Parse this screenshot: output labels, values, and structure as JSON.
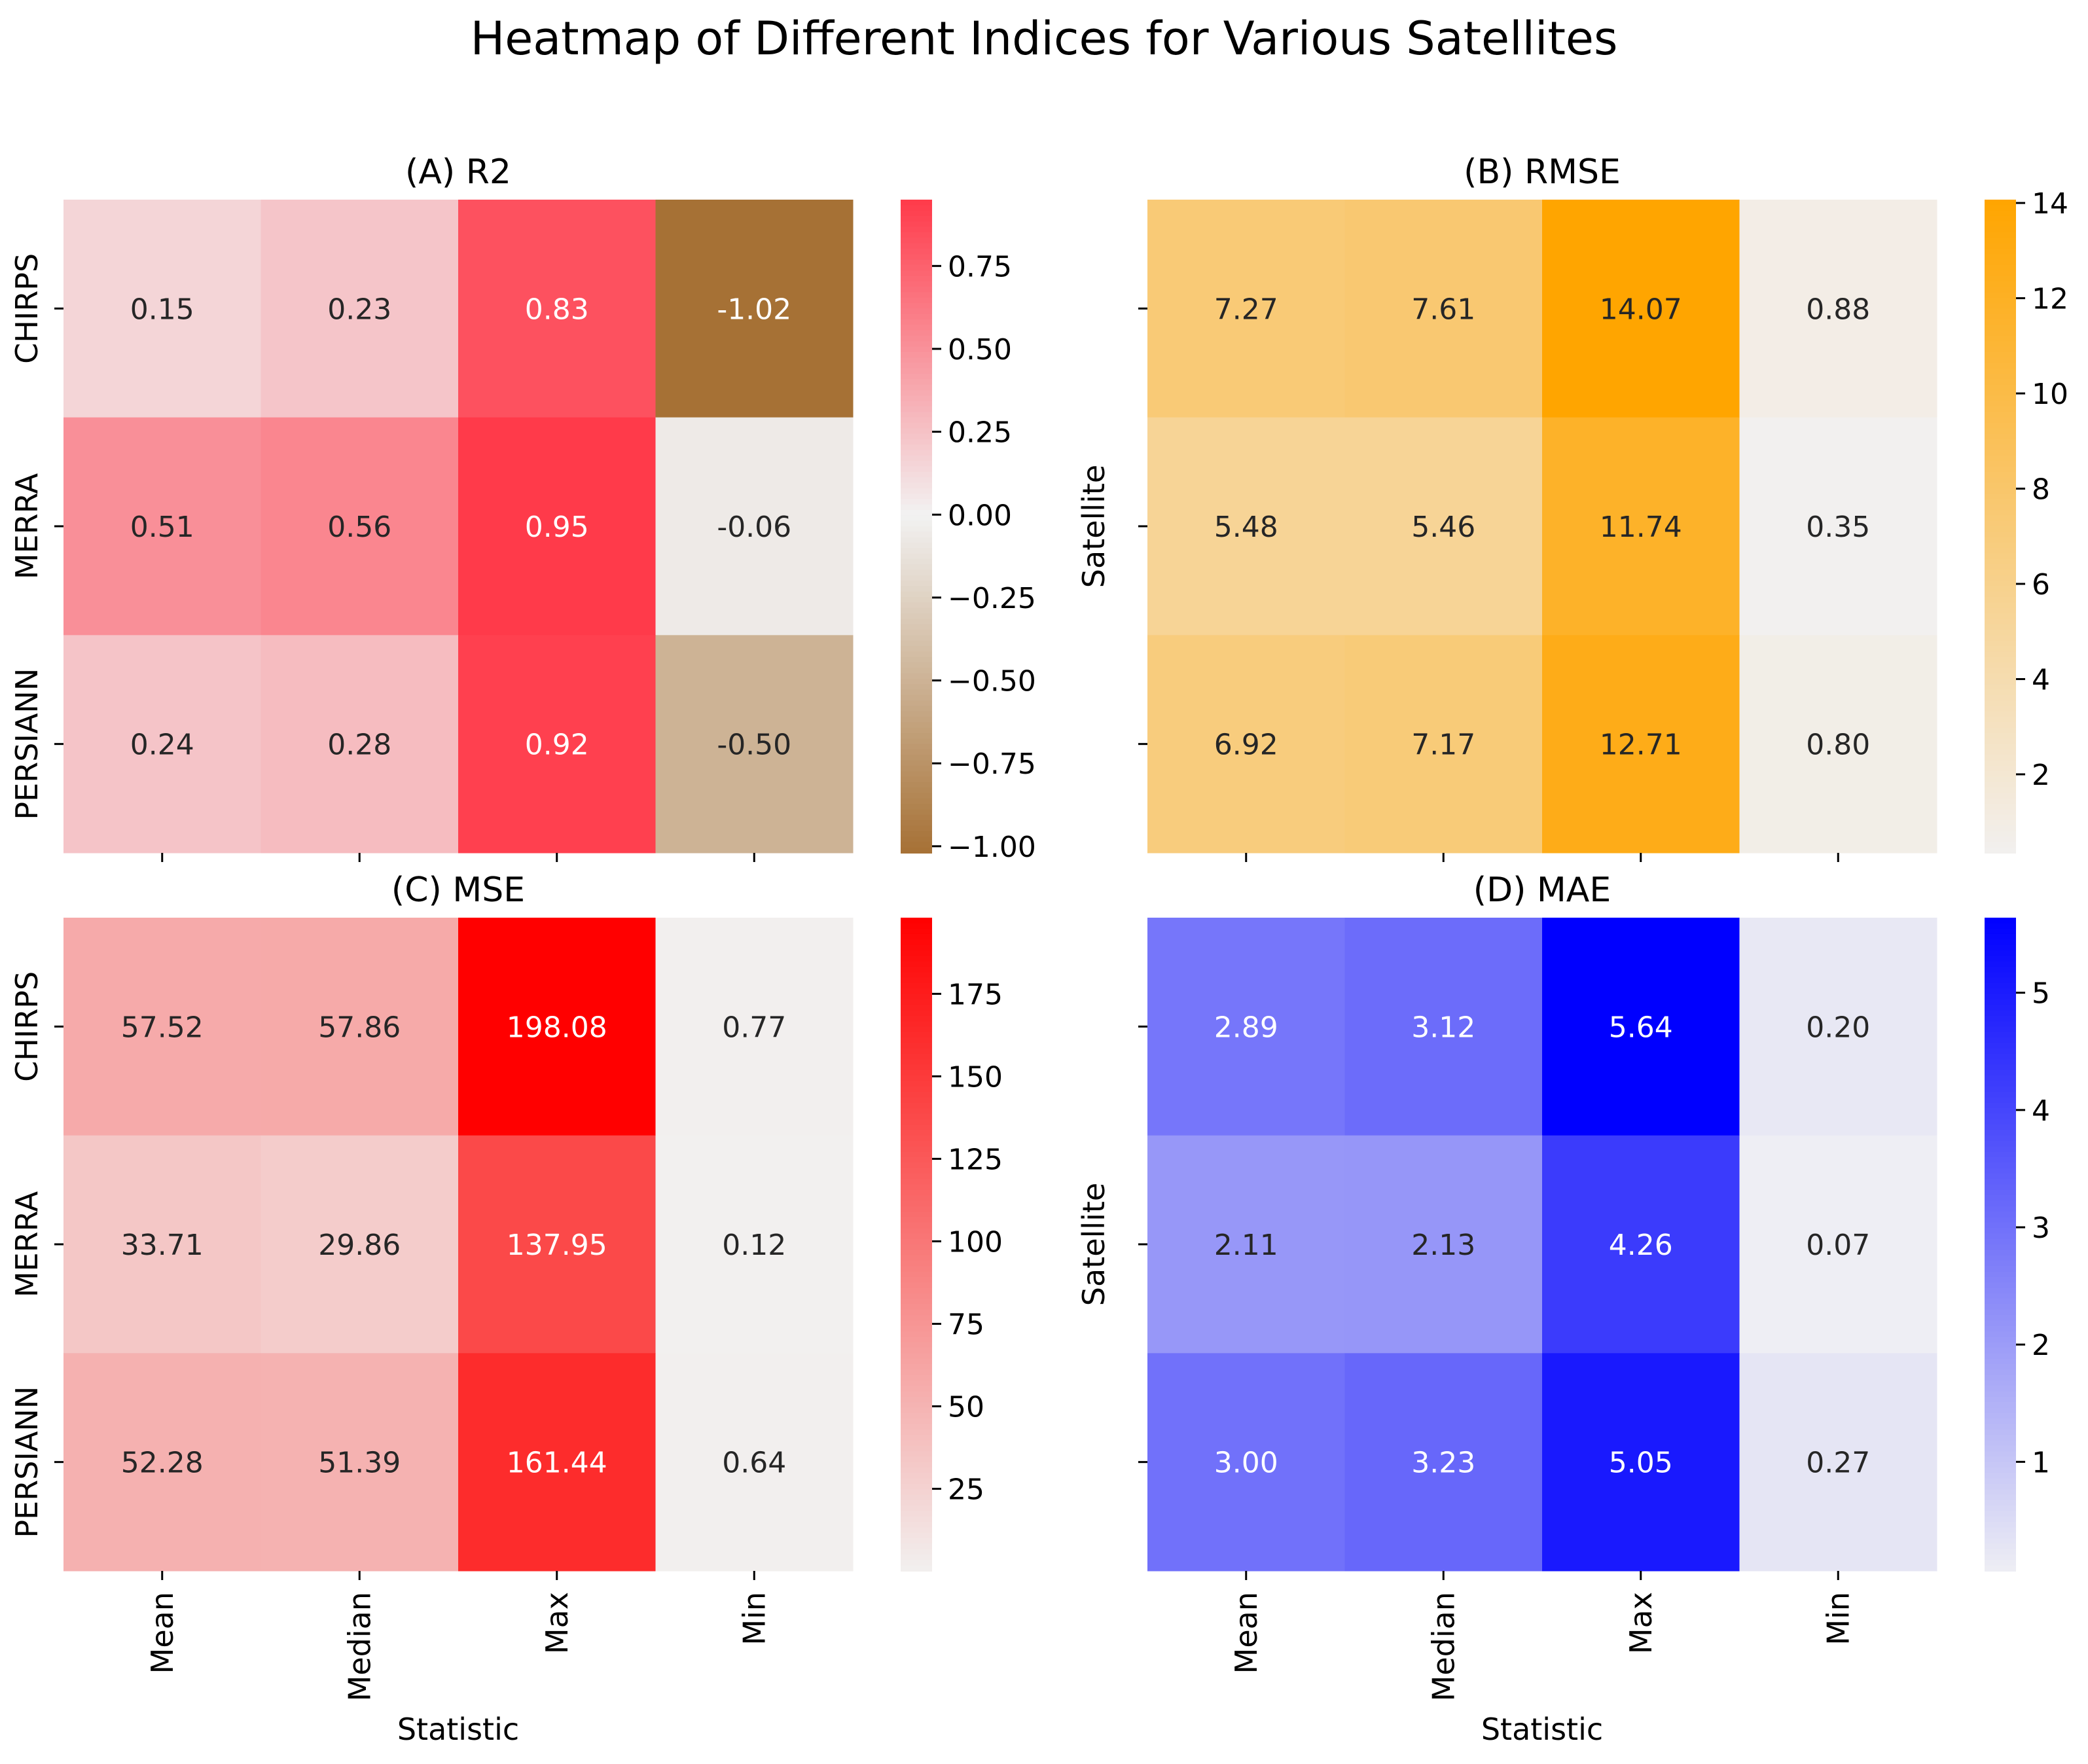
{
  "title": "Heatmap of Different Indices for Various Satellites",
  "chart_data": [
    {
      "type": "heatmap",
      "panel": "A",
      "title": "(A) R2",
      "xlabel": "",
      "ylabel": "",
      "x_ticks_shown": false,
      "y_ticks_shown": true,
      "categories_x": [
        "Mean",
        "Median",
        "Max",
        "Min"
      ],
      "categories_y": [
        "CHIRPS",
        "MERRA",
        "PERSIANN"
      ],
      "values": [
        [
          0.15,
          0.23,
          0.83,
          -1.02
        ],
        [
          0.51,
          0.56,
          0.95,
          -0.06
        ],
        [
          0.24,
          0.28,
          0.92,
          -0.5
        ]
      ],
      "value_format": "2f",
      "colorbar": {
        "min": -1.02,
        "max": 0.95,
        "center": 0,
        "colors": [
          "#a67135",
          "#f2f2f2",
          "#ff3a4a"
        ],
        "ticks": [
          0.75,
          0.5,
          0.25,
          0.0,
          -0.25,
          -0.5,
          -0.75,
          -1.0
        ],
        "tick_labels": [
          "0.75",
          "0.50",
          "0.25",
          "0.00",
          "−0.25",
          "−0.50",
          "−0.75",
          "−1.00"
        ]
      }
    },
    {
      "type": "heatmap",
      "panel": "B",
      "title": "(B) RMSE",
      "xlabel": "",
      "ylabel": "Satellite",
      "x_ticks_shown": false,
      "y_ticks_shown": false,
      "categories_x": [
        "Mean",
        "Median",
        "Max",
        "Min"
      ],
      "categories_y": [
        "CHIRPS",
        "MERRA",
        "PERSIANN"
      ],
      "values": [
        [
          7.27,
          7.61,
          14.07,
          0.88
        ],
        [
          5.48,
          5.46,
          11.74,
          0.35
        ],
        [
          6.92,
          7.17,
          12.71,
          0.8
        ]
      ],
      "value_format": "2f",
      "colorbar": {
        "min": 0.35,
        "max": 14.07,
        "colors": [
          "#f2f0ef",
          "#ffa500"
        ],
        "ticks": [
          14,
          12,
          10,
          8,
          6,
          4,
          2
        ],
        "tick_labels": [
          "14",
          "12",
          "10",
          "8",
          "6",
          "4",
          "2"
        ]
      }
    },
    {
      "type": "heatmap",
      "panel": "C",
      "title": "(C) MSE",
      "xlabel": "Statistic",
      "ylabel": "",
      "x_ticks_shown": true,
      "y_ticks_shown": true,
      "categories_x": [
        "Mean",
        "Median",
        "Max",
        "Min"
      ],
      "categories_y": [
        "CHIRPS",
        "MERRA",
        "PERSIANN"
      ],
      "values": [
        [
          57.52,
          57.86,
          198.08,
          0.77
        ],
        [
          33.71,
          29.86,
          137.95,
          0.12
        ],
        [
          52.28,
          51.39,
          161.44,
          0.64
        ]
      ],
      "value_format": "2f",
      "colorbar": {
        "min": 0.12,
        "max": 198.08,
        "colors": [
          "#f2f0ef",
          "#ff0000"
        ],
        "ticks": [
          175,
          150,
          125,
          100,
          75,
          50,
          25
        ],
        "tick_labels": [
          "175",
          "150",
          "125",
          "100",
          "75",
          "50",
          "25"
        ]
      }
    },
    {
      "type": "heatmap",
      "panel": "D",
      "title": "(D) MAE",
      "xlabel": "Statistic",
      "ylabel": "Satellite",
      "x_ticks_shown": true,
      "y_ticks_shown": false,
      "categories_x": [
        "Mean",
        "Median",
        "Max",
        "Min"
      ],
      "categories_y": [
        "CHIRPS",
        "MERRA",
        "PERSIANN"
      ],
      "values": [
        [
          2.89,
          3.12,
          5.64,
          0.2
        ],
        [
          2.11,
          2.13,
          4.26,
          0.07
        ],
        [
          3.0,
          3.23,
          5.05,
          0.27
        ]
      ],
      "value_format": "2f",
      "colorbar": {
        "min": 0.07,
        "max": 5.64,
        "colors": [
          "#eeeef4",
          "#0000ff"
        ],
        "ticks": [
          5,
          4,
          3,
          2,
          1
        ],
        "tick_labels": [
          "5",
          "4",
          "3",
          "2",
          "1"
        ]
      }
    }
  ]
}
